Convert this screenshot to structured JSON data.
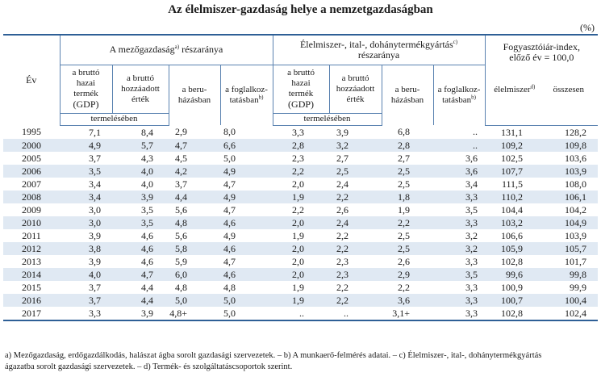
{
  "title": "Az élelmiszer-gazdaság helye a nemzetgazdaságban",
  "unit": "(%)",
  "header": {
    "ev": "Év",
    "group1": "A mezőgazdaság",
    "group1_sup": "a)",
    "group1_tail": " részaránya",
    "group2_line1": "Élelmiszer-, ital-, dohánytermékgyártás",
    "group2_sup": "c)",
    "group2_line2": "részaránya",
    "group3_line1": "Fogyasztóiár-index,",
    "group3_line2": "előző év = 100,0",
    "gdp_l1": "a bruttó",
    "gdp_l2": "hazai",
    "gdp_l3": "termék",
    "gdp_l4": "(GDP)",
    "hoz_l1": "a bruttó",
    "hoz_l2": "hozzáadott",
    "hoz_l3": "érték",
    "ber_l1": "a beru-",
    "ber_l2": "házásban",
    "fog_l1": "a foglalkoz-",
    "fog_l2": "tatásban",
    "fog_sup": "b)",
    "elelmiszer": "élelmiszer",
    "elelmiszer_sup": "d)",
    "osszesen": "összesen",
    "termeleseben": "termelésében"
  },
  "rows": [
    {
      "ev": "1995",
      "v": [
        "7,1",
        "8,4",
        "2,9",
        "8,0",
        "3,3",
        "3,9",
        "6,8",
        "..",
        "131,1",
        "128,2"
      ]
    },
    {
      "ev": "2000",
      "v": [
        "4,9",
        "5,7",
        "4,7",
        "6,6",
        "2,8",
        "3,2",
        "2,8",
        "..",
        "109,2",
        "109,8"
      ]
    },
    {
      "ev": "2005",
      "v": [
        "3,7",
        "4,3",
        "4,5",
        "5,0",
        "2,3",
        "2,7",
        "2,7",
        "3,6",
        "102,5",
        "103,6"
      ]
    },
    {
      "ev": "2006",
      "v": [
        "3,5",
        "4,0",
        "4,2",
        "4,9",
        "2,2",
        "2,5",
        "2,5",
        "3,6",
        "107,7",
        "103,9"
      ]
    },
    {
      "ev": "2007",
      "v": [
        "3,4",
        "4,0",
        "3,7",
        "4,7",
        "2,0",
        "2,4",
        "2,5",
        "3,4",
        "111,5",
        "108,0"
      ]
    },
    {
      "ev": "2008",
      "v": [
        "3,4",
        "3,9",
        "4,4",
        "4,9",
        "1,9",
        "2,2",
        "1,8",
        "3,3",
        "110,2",
        "106,1"
      ]
    },
    {
      "ev": "2009",
      "v": [
        "3,0",
        "3,5",
        "5,6",
        "4,7",
        "2,2",
        "2,6",
        "1,9",
        "3,5",
        "104,4",
        "104,2"
      ]
    },
    {
      "ev": "2010",
      "v": [
        "3,0",
        "3,5",
        "4,8",
        "4,6",
        "2,0",
        "2,4",
        "2,2",
        "3,3",
        "103,2",
        "104,9"
      ]
    },
    {
      "ev": "2011",
      "v": [
        "3,9",
        "4,6",
        "5,6",
        "4,9",
        "1,9",
        "2,2",
        "2,5",
        "3,2",
        "106,6",
        "103,9"
      ]
    },
    {
      "ev": "2012",
      "v": [
        "3,8",
        "4,6",
        "5,8",
        "4,6",
        "2,0",
        "2,2",
        "2,5",
        "3,2",
        "105,9",
        "105,7"
      ]
    },
    {
      "ev": "2013",
      "v": [
        "3,9",
        "4,6",
        "5,9",
        "4,7",
        "2,0",
        "2,3",
        "2,6",
        "3,3",
        "102,8",
        "101,7"
      ]
    },
    {
      "ev": "2014",
      "v": [
        "4,0",
        "4,7",
        "6,0",
        "4,6",
        "2,0",
        "2,3",
        "2,9",
        "3,5",
        "99,6",
        "99,8"
      ]
    },
    {
      "ev": "2015",
      "v": [
        "3,7",
        "4,4",
        "4,8",
        "4,8",
        "1,9",
        "2,2",
        "2,2",
        "3,3",
        "100,9",
        "99,9"
      ]
    },
    {
      "ev": "2016",
      "v": [
        "3,7",
        "4,4",
        "5,0",
        "5,0",
        "1,9",
        "2,2",
        "3,6",
        "3,3",
        "100,7",
        "100,4"
      ]
    },
    {
      "ev": "2017",
      "v": [
        "3,3",
        "3,9",
        "4,8+",
        "5,0",
        "..",
        "..",
        "3,1+",
        "3,3",
        "102,8",
        "102,4"
      ]
    }
  ],
  "footnotes": {
    "line1": "a) Mezőgazdaság, erdőgazdálkodás, halászat ágba sorolt gazdasági szervezetek. – b) A munkaerő-felmérés adatai. – c) Élelmiszer-, ital-, dohánytermékgyártás",
    "line2": "ágazatba sorolt gazdasági szervezetek. – d) Termék- és szolgáltatáscsoportok szerint."
  }
}
